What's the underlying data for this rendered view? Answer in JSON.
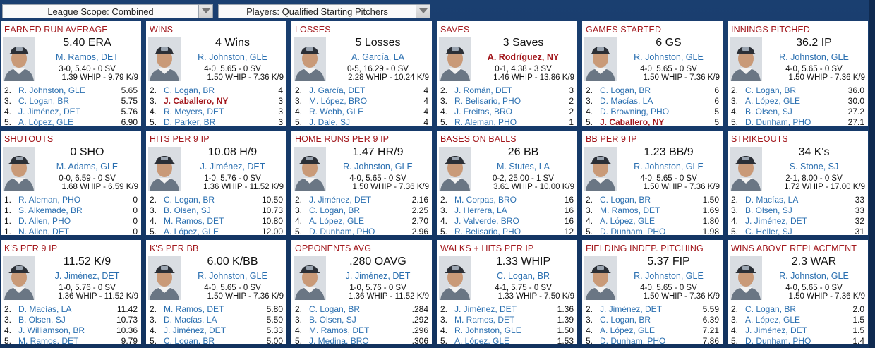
{
  "filters": {
    "scope": "League Scope: Combined",
    "players": "Players: Qualified Starting Pitchers"
  },
  "colors": {
    "background": "#163a69",
    "title": "#a2171c",
    "link": "#2a6fb0"
  },
  "cards": [
    {
      "title": "EARNED RUN AVERAGE",
      "value": "5.40 ERA",
      "leader": "M. Ramos, DET",
      "line1": "3-0, 5.40 - 0 SV",
      "line2": "1.39 WHIP - 9.79 K/9",
      "highlight_leader": false,
      "rows": [
        {
          "rank": "2.",
          "name": "R. Johnston, GLE",
          "val": "5.65"
        },
        {
          "rank": "3.",
          "name": "C. Logan, BR",
          "val": "5.75"
        },
        {
          "rank": "4.",
          "name": "J. Jiménez, DET",
          "val": "5.76"
        },
        {
          "rank": "5.",
          "name": "A. López, GLE",
          "val": "6.90"
        }
      ]
    },
    {
      "title": "WINS",
      "value": "4 Wins",
      "leader": "R. Johnston, GLE",
      "line1": "4-0, 5.65 - 0 SV",
      "line2": "1.50 WHIP - 7.36 K/9",
      "highlight_leader": false,
      "rows": [
        {
          "rank": "2.",
          "name": "C. Logan, BR",
          "val": "4"
        },
        {
          "rank": "3.",
          "name": "J. Caballero, NY",
          "val": "3",
          "hl": true
        },
        {
          "rank": "4.",
          "name": "R. Meyers, DET",
          "val": "3"
        },
        {
          "rank": "5.",
          "name": "D. Parker, BR",
          "val": "3"
        }
      ]
    },
    {
      "title": "LOSSES",
      "value": "5 Losses",
      "leader": "A. García, LA",
      "line1": "0-5, 16.29 - 0 SV",
      "line2": "2.28 WHIP - 10.24 K/9",
      "highlight_leader": false,
      "rows": [
        {
          "rank": "2.",
          "name": "J. García, DET",
          "val": "4"
        },
        {
          "rank": "3.",
          "name": "M. López, BRO",
          "val": "4"
        },
        {
          "rank": "4.",
          "name": "R. Webb, GLE",
          "val": "4"
        },
        {
          "rank": "5.",
          "name": "J. Dale, SJ",
          "val": "4"
        }
      ]
    },
    {
      "title": "SAVES",
      "value": "3 Saves",
      "leader": "A. Rodríguez, NY",
      "line1": "0-1, 4.38 - 3 SV",
      "line2": "1.46 WHIP - 13.86 K/9",
      "highlight_leader": true,
      "rows": [
        {
          "rank": "2.",
          "name": "J. Román, DET",
          "val": "3"
        },
        {
          "rank": "3.",
          "name": "R. Belisario, PHO",
          "val": "2"
        },
        {
          "rank": "4.",
          "name": "J. Freitas, BRO",
          "val": "2"
        },
        {
          "rank": "5.",
          "name": "R. Aleman, PHO",
          "val": "1"
        }
      ]
    },
    {
      "title": "GAMES STARTED",
      "value": "6 GS",
      "leader": "R. Johnston, GLE",
      "line1": "4-0, 5.65 - 0 SV",
      "line2": "1.50 WHIP - 7.36 K/9",
      "highlight_leader": false,
      "rows": [
        {
          "rank": "2.",
          "name": "C. Logan, BR",
          "val": "6"
        },
        {
          "rank": "3.",
          "name": "D. Macías, LA",
          "val": "6"
        },
        {
          "rank": "4.",
          "name": "D. Browning, PHO",
          "val": "5"
        },
        {
          "rank": "5.",
          "name": "J. Caballero, NY",
          "val": "5",
          "hl": true
        }
      ]
    },
    {
      "title": "INNINGS PITCHED",
      "value": "36.2 IP",
      "leader": "R. Johnston, GLE",
      "line1": "4-0, 5.65 - 0 SV",
      "line2": "1.50 WHIP - 7.36 K/9",
      "highlight_leader": false,
      "rows": [
        {
          "rank": "2.",
          "name": "C. Logan, BR",
          "val": "36.0"
        },
        {
          "rank": "3.",
          "name": "A. López, GLE",
          "val": "30.0"
        },
        {
          "rank": "4.",
          "name": "B. Olsen, SJ",
          "val": "27.2"
        },
        {
          "rank": "5.",
          "name": "D. Dunham, PHO",
          "val": "27.1"
        }
      ]
    },
    {
      "title": "SHUTOUTS",
      "value": "0 SHO",
      "leader": "M. Adams, GLE",
      "line1": "0-0, 6.59 - 0 SV",
      "line2": "1.68 WHIP - 6.59 K/9",
      "highlight_leader": false,
      "rows": [
        {
          "rank": "1.",
          "name": "R. Aleman, PHO",
          "val": "0"
        },
        {
          "rank": "1.",
          "name": "S. Alkemade, BR",
          "val": "0"
        },
        {
          "rank": "1.",
          "name": "D. Allen, PHO",
          "val": "0"
        },
        {
          "rank": "1.",
          "name": "N. Allen, DET",
          "val": "0"
        }
      ]
    },
    {
      "title": "HITS PER 9 IP",
      "value": "10.08 H/9",
      "leader": "J. Jiménez, DET",
      "line1": "1-0, 5.76 - 0 SV",
      "line2": "1.36 WHIP - 11.52 K/9",
      "highlight_leader": false,
      "rows": [
        {
          "rank": "2.",
          "name": "C. Logan, BR",
          "val": "10.50"
        },
        {
          "rank": "3.",
          "name": "B. Olsen, SJ",
          "val": "10.73"
        },
        {
          "rank": "4.",
          "name": "M. Ramos, DET",
          "val": "10.80"
        },
        {
          "rank": "5.",
          "name": "A. López, GLE",
          "val": "12.00"
        }
      ]
    },
    {
      "title": "HOME RUNS PER 9 IP",
      "value": "1.47 HR/9",
      "leader": "R. Johnston, GLE",
      "line1": "4-0, 5.65 - 0 SV",
      "line2": "1.50 WHIP - 7.36 K/9",
      "highlight_leader": false,
      "rows": [
        {
          "rank": "2.",
          "name": "J. Jiménez, DET",
          "val": "2.16"
        },
        {
          "rank": "3.",
          "name": "C. Logan, BR",
          "val": "2.25"
        },
        {
          "rank": "4.",
          "name": "A. López, GLE",
          "val": "2.70"
        },
        {
          "rank": "5.",
          "name": "D. Dunham, PHO",
          "val": "2.96"
        }
      ]
    },
    {
      "title": "BASES ON BALLS",
      "value": "26 BB",
      "leader": "M. Stutes, LA",
      "line1": "0-2, 25.00 - 1 SV",
      "line2": "3.61 WHIP - 10.00 K/9",
      "highlight_leader": false,
      "rows": [
        {
          "rank": "2.",
          "name": "M. Corpas, BRO",
          "val": "16"
        },
        {
          "rank": "3.",
          "name": "J. Herrera, LA",
          "val": "16"
        },
        {
          "rank": "4.",
          "name": "J. Valverde, BRO",
          "val": "16"
        },
        {
          "rank": "5.",
          "name": "R. Belisario, PHO",
          "val": "12"
        }
      ]
    },
    {
      "title": "BB PER 9 IP",
      "value": "1.23 BB/9",
      "leader": "R. Johnston, GLE",
      "line1": "4-0, 5.65 - 0 SV",
      "line2": "1.50 WHIP - 7.36 K/9",
      "highlight_leader": false,
      "rows": [
        {
          "rank": "2.",
          "name": "C. Logan, BR",
          "val": "1.50"
        },
        {
          "rank": "3.",
          "name": "M. Ramos, DET",
          "val": "1.69"
        },
        {
          "rank": "4.",
          "name": "A. López, GLE",
          "val": "1.80"
        },
        {
          "rank": "5.",
          "name": "D. Dunham, PHO",
          "val": "1.98"
        }
      ]
    },
    {
      "title": "STRIKEOUTS",
      "value": "34 K's",
      "leader": "S. Stone, SJ",
      "line1": "2-1, 8.00 - 0 SV",
      "line2": "1.72 WHIP - 17.00 K/9",
      "highlight_leader": false,
      "rows": [
        {
          "rank": "2.",
          "name": "D. Macías, LA",
          "val": "33"
        },
        {
          "rank": "3.",
          "name": "B. Olsen, SJ",
          "val": "33"
        },
        {
          "rank": "4.",
          "name": "J. Jiménez, DET",
          "val": "32"
        },
        {
          "rank": "5.",
          "name": "C. Heller, SJ",
          "val": "31"
        }
      ]
    },
    {
      "title": "K'S PER 9 IP",
      "value": "11.52 K/9",
      "leader": "J. Jiménez, DET",
      "line1": "1-0, 5.76 - 0 SV",
      "line2": "1.36 WHIP - 11.52 K/9",
      "highlight_leader": false,
      "rows": [
        {
          "rank": "2.",
          "name": "D. Macías, LA",
          "val": "11.42"
        },
        {
          "rank": "3.",
          "name": "B. Olsen, SJ",
          "val": "10.73"
        },
        {
          "rank": "4.",
          "name": "J. Williamson, BR",
          "val": "10.36"
        },
        {
          "rank": "5.",
          "name": "M. Ramos, DET",
          "val": "9.79"
        }
      ]
    },
    {
      "title": "K'S PER BB",
      "value": "6.00 K/BB",
      "leader": "R. Johnston, GLE",
      "line1": "4-0, 5.65 - 0 SV",
      "line2": "1.50 WHIP - 7.36 K/9",
      "highlight_leader": false,
      "rows": [
        {
          "rank": "2.",
          "name": "M. Ramos, DET",
          "val": "5.80"
        },
        {
          "rank": "3.",
          "name": "D. Macías, LA",
          "val": "5.50"
        },
        {
          "rank": "4.",
          "name": "J. Jiménez, DET",
          "val": "5.33"
        },
        {
          "rank": "5.",
          "name": "C. Logan, BR",
          "val": "5.00"
        }
      ]
    },
    {
      "title": "OPPONENTS AVG",
      "value": ".280 OAVG",
      "leader": "J. Jiménez, DET",
      "line1": "1-0, 5.76 - 0 SV",
      "line2": "1.36 WHIP - 11.52 K/9",
      "highlight_leader": false,
      "rows": [
        {
          "rank": "2.",
          "name": "C. Logan, BR",
          "val": ".284"
        },
        {
          "rank": "3.",
          "name": "B. Olsen, SJ",
          "val": ".292"
        },
        {
          "rank": "4.",
          "name": "M. Ramos, DET",
          "val": ".296"
        },
        {
          "rank": "5.",
          "name": "J. Medina, BRO",
          "val": ".306"
        }
      ]
    },
    {
      "title": "WALKS + HITS PER IP",
      "value": "1.33 WHIP",
      "leader": "C. Logan, BR",
      "line1": "4-1, 5.75 - 0 SV",
      "line2": "1.33 WHIP - 7.50 K/9",
      "highlight_leader": false,
      "rows": [
        {
          "rank": "2.",
          "name": "J. Jiménez, DET",
          "val": "1.36"
        },
        {
          "rank": "3.",
          "name": "M. Ramos, DET",
          "val": "1.39"
        },
        {
          "rank": "4.",
          "name": "R. Johnston, GLE",
          "val": "1.50"
        },
        {
          "rank": "5.",
          "name": "A. López, GLE",
          "val": "1.53"
        }
      ]
    },
    {
      "title": "FIELDING INDEP. PITCHING",
      "value": "5.37 FIP",
      "leader": "R. Johnston, GLE",
      "line1": "4-0, 5.65 - 0 SV",
      "line2": "1.50 WHIP - 7.36 K/9",
      "highlight_leader": false,
      "rows": [
        {
          "rank": "2.",
          "name": "J. Jiménez, DET",
          "val": "5.59"
        },
        {
          "rank": "3.",
          "name": "C. Logan, BR",
          "val": "6.39"
        },
        {
          "rank": "4.",
          "name": "A. López, GLE",
          "val": "7.21"
        },
        {
          "rank": "5.",
          "name": "D. Dunham, PHO",
          "val": "7.86"
        }
      ]
    },
    {
      "title": "WINS ABOVE REPLACEMENT",
      "value": "2.3 WAR",
      "leader": "R. Johnston, GLE",
      "line1": "4-0, 5.65 - 0 SV",
      "line2": "1.50 WHIP - 7.36 K/9",
      "highlight_leader": false,
      "rows": [
        {
          "rank": "2.",
          "name": "C. Logan, BR",
          "val": "2.0"
        },
        {
          "rank": "3.",
          "name": "A. López, GLE",
          "val": "1.5"
        },
        {
          "rank": "4.",
          "name": "J. Jiménez, DET",
          "val": "1.5"
        },
        {
          "rank": "5.",
          "name": "D. Dunham, PHO",
          "val": "1.4"
        }
      ]
    }
  ]
}
